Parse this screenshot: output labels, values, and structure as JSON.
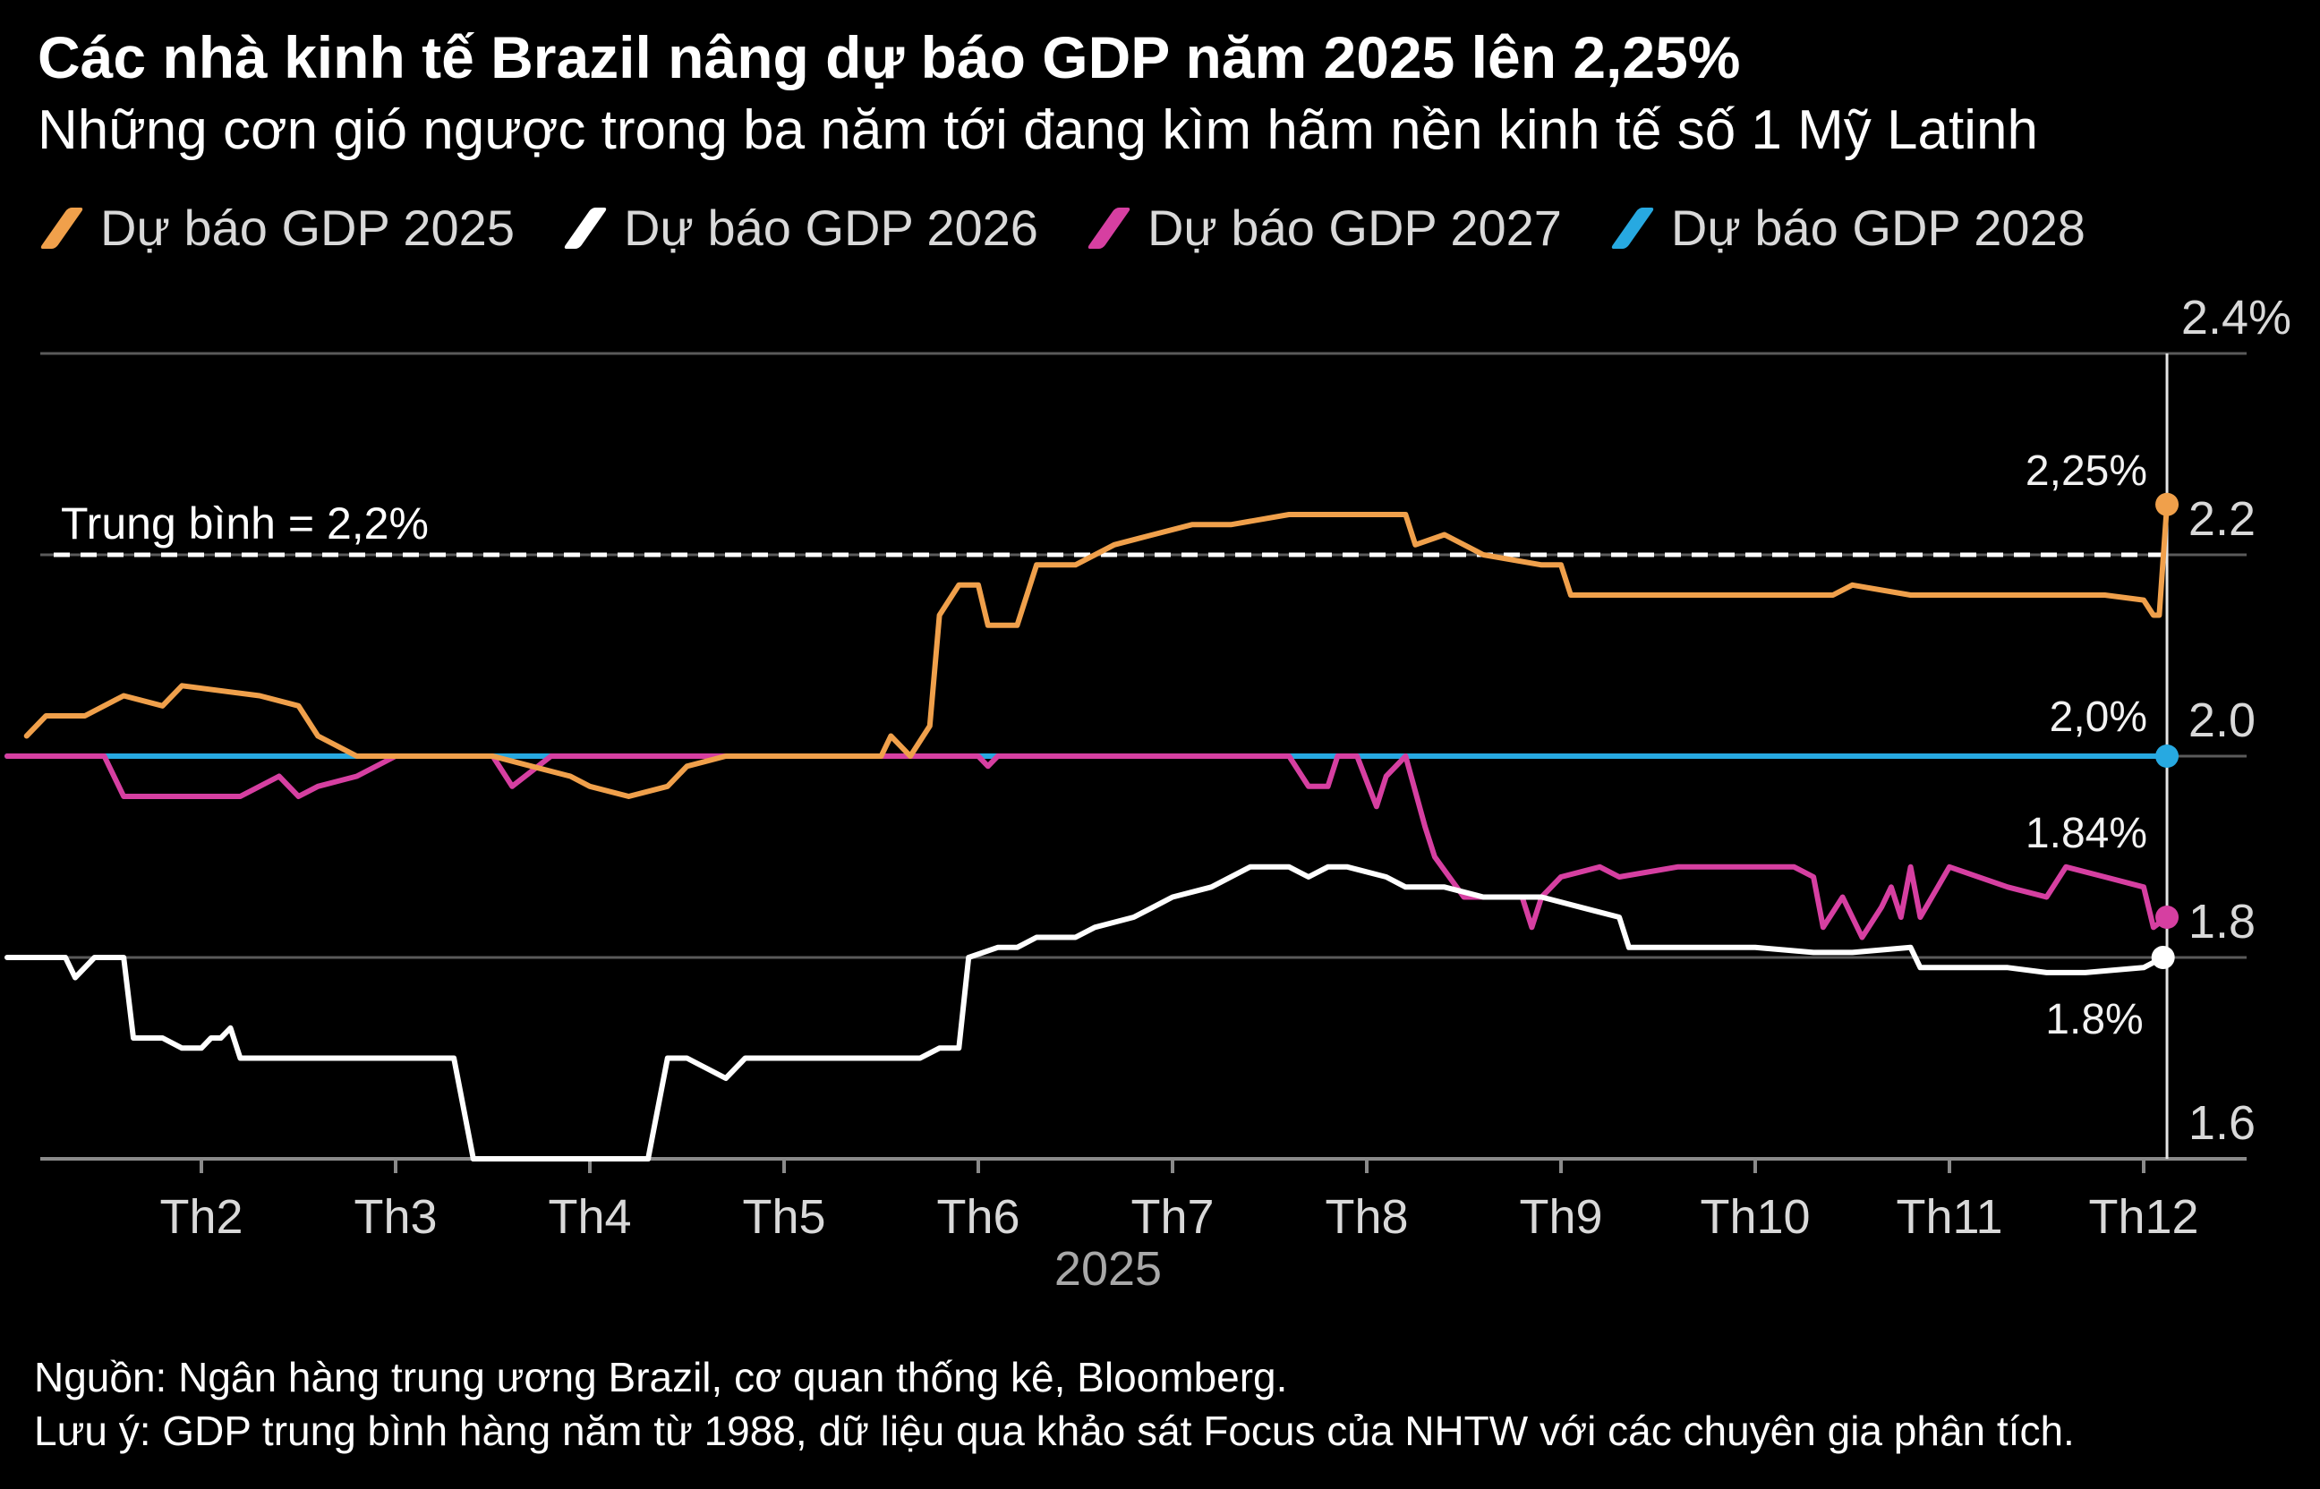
{
  "header": {
    "title": "Các nhà kinh tế Brazil nâng dự báo GDP năm 2025 lên 2,25%",
    "subtitle": "Những cơn gió ngược trong ba năm tới đang kìm hãm nền kinh tế số 1 Mỹ Latinh"
  },
  "footer": {
    "source": "Nguồn: Ngân hàng trung ương Brazil, cơ quan thống kê, Bloomberg.",
    "note": "Lưu ý: GDP trung bình hàng năm từ 1988, dữ liệu qua khảo sát Focus của NHTW với các chuyên gia phân tích."
  },
  "chart_data": {
    "type": "line",
    "title": "Các nhà kinh tế Brazil nâng dự báo GDP năm 2025 lên 2,25%",
    "subtitle": "Những cơn gió ngược trong ba năm tới đang kìm hãm nền kinh tế số 1 Mỹ Latinh",
    "xlabel": "2025",
    "ylabel": "",
    "x_unit": "month (1 = start of Jan 2025)",
    "xlim": [
      1,
      12.6
    ],
    "ylim": [
      1.6,
      2.4
    ],
    "y_ticks": [
      1.6,
      1.8,
      2.0,
      2.2
    ],
    "y_tick_labels": [
      "1.6",
      "1.8",
      "2.0",
      "2.2"
    ],
    "y_top_label": "2.4%",
    "x_ticks": [
      2,
      3,
      4,
      5,
      6,
      7,
      8,
      9,
      10,
      11,
      12
    ],
    "x_tick_labels": [
      "Th2",
      "Th3",
      "Th4",
      "Th5",
      "Th6",
      "Th7",
      "Th8",
      "Th9",
      "Th10",
      "Th11",
      "Th12"
    ],
    "x_axis_year": "2025",
    "grid": true,
    "legend_position": "top-left",
    "reference_line": {
      "value": 2.2,
      "label": "Trung bình = 2,2%"
    },
    "series": [
      {
        "name": "Dự báo GDP 2025",
        "color": "#f0a04b",
        "end_label": "2,25%",
        "points": [
          [
            1.1,
            2.02
          ],
          [
            1.2,
            2.04
          ],
          [
            1.4,
            2.04
          ],
          [
            1.6,
            2.06
          ],
          [
            1.8,
            2.05
          ],
          [
            1.9,
            2.07
          ],
          [
            2.3,
            2.06
          ],
          [
            2.5,
            2.05
          ],
          [
            2.6,
            2.02
          ],
          [
            2.8,
            2.0
          ],
          [
            3.0,
            2.0
          ],
          [
            3.2,
            2.0
          ],
          [
            3.5,
            2.0
          ],
          [
            3.7,
            1.99
          ],
          [
            3.9,
            1.98
          ],
          [
            4.0,
            1.97
          ],
          [
            4.2,
            1.96
          ],
          [
            4.4,
            1.97
          ],
          [
            4.5,
            1.99
          ],
          [
            4.7,
            2.0
          ],
          [
            5.0,
            2.0
          ],
          [
            5.4,
            2.0
          ],
          [
            5.5,
            2.0
          ],
          [
            5.55,
            2.02
          ],
          [
            5.65,
            2.0
          ],
          [
            5.75,
            2.03
          ],
          [
            5.8,
            2.14
          ],
          [
            5.9,
            2.17
          ],
          [
            6.0,
            2.17
          ],
          [
            6.05,
            2.13
          ],
          [
            6.2,
            2.13
          ],
          [
            6.3,
            2.19
          ],
          [
            6.5,
            2.19
          ],
          [
            6.7,
            2.21
          ],
          [
            6.9,
            2.22
          ],
          [
            7.1,
            2.23
          ],
          [
            7.3,
            2.23
          ],
          [
            7.6,
            2.24
          ],
          [
            8.0,
            2.24
          ],
          [
            8.2,
            2.24
          ],
          [
            8.25,
            2.21
          ],
          [
            8.4,
            2.22
          ],
          [
            8.6,
            2.2
          ],
          [
            8.9,
            2.19
          ],
          [
            9.0,
            2.19
          ],
          [
            9.05,
            2.16
          ],
          [
            9.3,
            2.16
          ],
          [
            10.0,
            2.16
          ],
          [
            10.4,
            2.16
          ],
          [
            10.5,
            2.17
          ],
          [
            10.8,
            2.16
          ],
          [
            11.3,
            2.16
          ],
          [
            11.8,
            2.16
          ],
          [
            12.0,
            2.155
          ],
          [
            12.05,
            2.14
          ],
          [
            12.08,
            2.14
          ],
          [
            12.12,
            2.25
          ]
        ]
      },
      {
        "name": "Dự báo GDP 2026",
        "color": "#ffffff",
        "end_label": "1.8%",
        "points": [
          [
            1.0,
            1.8
          ],
          [
            1.3,
            1.8
          ],
          [
            1.35,
            1.78
          ],
          [
            1.45,
            1.8
          ],
          [
            1.6,
            1.8
          ],
          [
            1.65,
            1.72
          ],
          [
            1.8,
            1.72
          ],
          [
            1.9,
            1.71
          ],
          [
            2.0,
            1.71
          ],
          [
            2.05,
            1.72
          ],
          [
            2.1,
            1.72
          ],
          [
            2.15,
            1.73
          ],
          [
            2.2,
            1.7
          ],
          [
            3.3,
            1.7
          ],
          [
            3.4,
            1.6
          ],
          [
            4.3,
            1.6
          ],
          [
            4.4,
            1.7
          ],
          [
            4.5,
            1.7
          ],
          [
            4.7,
            1.68
          ],
          [
            4.8,
            1.7
          ],
          [
            5.5,
            1.7
          ],
          [
            5.7,
            1.7
          ],
          [
            5.8,
            1.71
          ],
          [
            5.9,
            1.71
          ],
          [
            5.95,
            1.8
          ],
          [
            6.1,
            1.81
          ],
          [
            6.2,
            1.81
          ],
          [
            6.3,
            1.82
          ],
          [
            6.5,
            1.82
          ],
          [
            6.6,
            1.83
          ],
          [
            6.8,
            1.84
          ],
          [
            6.9,
            1.85
          ],
          [
            7.0,
            1.86
          ],
          [
            7.2,
            1.87
          ],
          [
            7.4,
            1.89
          ],
          [
            7.6,
            1.89
          ],
          [
            7.7,
            1.88
          ],
          [
            7.8,
            1.89
          ],
          [
            7.9,
            1.89
          ],
          [
            8.1,
            1.88
          ],
          [
            8.2,
            1.87
          ],
          [
            8.4,
            1.87
          ],
          [
            8.6,
            1.86
          ],
          [
            8.9,
            1.86
          ],
          [
            9.1,
            1.85
          ],
          [
            9.3,
            1.84
          ],
          [
            9.35,
            1.81
          ],
          [
            9.5,
            1.81
          ],
          [
            10.0,
            1.81
          ],
          [
            10.3,
            1.805
          ],
          [
            10.5,
            1.805
          ],
          [
            10.8,
            1.81
          ],
          [
            10.85,
            1.79
          ],
          [
            11.0,
            1.79
          ],
          [
            11.3,
            1.79
          ],
          [
            11.5,
            1.785
          ],
          [
            11.7,
            1.785
          ],
          [
            12.0,
            1.79
          ],
          [
            12.1,
            1.8
          ]
        ]
      },
      {
        "name": "Dự báo GDP 2027",
        "color": "#d63fa1",
        "end_label": "1.84%",
        "points": [
          [
            1.0,
            2.0
          ],
          [
            1.5,
            2.0
          ],
          [
            1.6,
            1.96
          ],
          [
            2.2,
            1.96
          ],
          [
            2.4,
            1.98
          ],
          [
            2.5,
            1.96
          ],
          [
            2.6,
            1.97
          ],
          [
            2.8,
            1.98
          ],
          [
            3.0,
            2.0
          ],
          [
            3.5,
            2.0
          ],
          [
            3.6,
            1.97
          ],
          [
            3.8,
            2.0
          ],
          [
            4.5,
            2.0
          ],
          [
            5.0,
            2.0
          ],
          [
            5.5,
            2.0
          ],
          [
            5.6,
            2.0
          ],
          [
            6.0,
            2.0
          ],
          [
            6.05,
            1.99
          ],
          [
            6.1,
            2.0
          ],
          [
            7.2,
            2.0
          ],
          [
            7.6,
            2.0
          ],
          [
            7.7,
            1.97
          ],
          [
            7.8,
            1.97
          ],
          [
            7.85,
            2.0
          ],
          [
            7.95,
            2.0
          ],
          [
            8.05,
            1.95
          ],
          [
            8.1,
            1.98
          ],
          [
            8.2,
            2.0
          ],
          [
            8.3,
            1.93
          ],
          [
            8.35,
            1.9
          ],
          [
            8.5,
            1.86
          ],
          [
            8.8,
            1.86
          ],
          [
            8.85,
            1.83
          ],
          [
            8.9,
            1.86
          ],
          [
            9.0,
            1.88
          ],
          [
            9.2,
            1.89
          ],
          [
            9.3,
            1.88
          ],
          [
            9.6,
            1.89
          ],
          [
            9.8,
            1.89
          ],
          [
            10.2,
            1.89
          ],
          [
            10.3,
            1.88
          ],
          [
            10.35,
            1.83
          ],
          [
            10.45,
            1.86
          ],
          [
            10.55,
            1.82
          ],
          [
            10.65,
            1.85
          ],
          [
            10.7,
            1.87
          ],
          [
            10.75,
            1.84
          ],
          [
            10.8,
            1.89
          ],
          [
            10.85,
            1.84
          ],
          [
            11.0,
            1.89
          ],
          [
            11.3,
            1.87
          ],
          [
            11.5,
            1.86
          ],
          [
            11.6,
            1.89
          ],
          [
            11.8,
            1.88
          ],
          [
            12.0,
            1.87
          ],
          [
            12.05,
            1.83
          ],
          [
            12.12,
            1.84
          ]
        ]
      },
      {
        "name": "Dự báo GDP 2028",
        "color": "#27a9e1",
        "end_label": "2,0%",
        "points": [
          [
            1.0,
            2.0
          ],
          [
            12.12,
            2.0
          ]
        ]
      }
    ]
  }
}
